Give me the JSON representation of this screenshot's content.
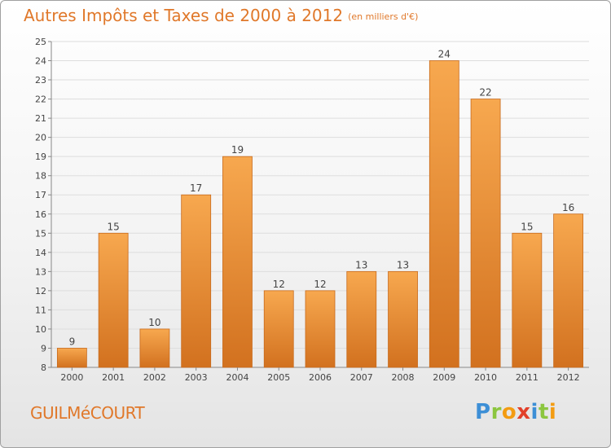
{
  "title": "Autres Impôts et Taxes de 2000 à 2012",
  "subtitle": "(en milliers d'€)",
  "commune": "GUILMéCOURT",
  "logo": {
    "text": "Proxiti",
    "letters": [
      {
        "ch": "P",
        "color": "#3d8fd6"
      },
      {
        "ch": "r",
        "color": "#8cc63f"
      },
      {
        "ch": "o",
        "color": "#f39c12"
      },
      {
        "ch": "x",
        "color": "#e2402a"
      },
      {
        "ch": "i",
        "color": "#3d8fd6"
      },
      {
        "ch": "t",
        "color": "#8cc63f"
      },
      {
        "ch": "i",
        "color": "#f39c12"
      }
    ]
  },
  "colors": {
    "accent": "#e0782a",
    "bar_top": "#f7a84f",
    "bar_bottom": "#d2711f",
    "grid": "#dddddd",
    "axis": "#888888"
  },
  "chart_data": {
    "type": "bar",
    "categories": [
      "2000",
      "2001",
      "2002",
      "2003",
      "2004",
      "2005",
      "2006",
      "2007",
      "2008",
      "2009",
      "2010",
      "2011",
      "2012"
    ],
    "values": [
      9,
      15,
      10,
      17,
      19,
      12,
      12,
      13,
      13,
      24,
      22,
      15,
      16
    ],
    "data_labels": [
      "9",
      "15",
      "10",
      "17",
      "19",
      "12",
      "12",
      "13",
      "13",
      "24",
      "22",
      "15",
      "16"
    ],
    "ylim": [
      8,
      25
    ],
    "yticks": [
      8,
      9,
      10,
      11,
      12,
      13,
      14,
      15,
      16,
      17,
      18,
      19,
      20,
      21,
      22,
      23,
      24,
      25
    ],
    "grid": true,
    "xlabel": "",
    "ylabel": ""
  }
}
